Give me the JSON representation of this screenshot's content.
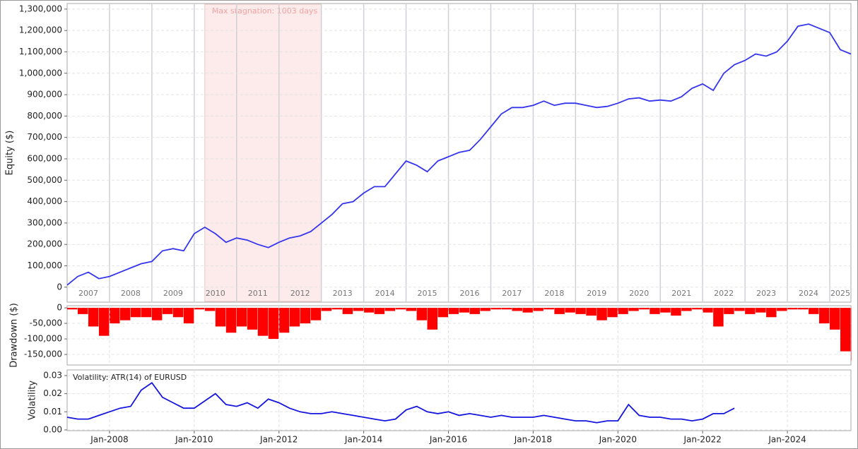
{
  "chart_data": [
    {
      "type": "line",
      "y_label": "Equity ($)",
      "color": "#3535ee",
      "grid": true,
      "x": [
        "2007-01",
        "2007-04",
        "2007-07",
        "2007-10",
        "2008-01",
        "2008-04",
        "2008-07",
        "2008-10",
        "2009-01",
        "2009-04",
        "2009-07",
        "2009-10",
        "2010-01",
        "2010-04",
        "2010-07",
        "2010-10",
        "2011-01",
        "2011-04",
        "2011-07",
        "2011-10",
        "2012-01",
        "2012-04",
        "2012-07",
        "2012-10",
        "2013-01",
        "2013-04",
        "2013-07",
        "2013-10",
        "2014-01",
        "2014-04",
        "2014-07",
        "2014-10",
        "2015-01",
        "2015-04",
        "2015-07",
        "2015-10",
        "2016-01",
        "2016-04",
        "2016-07",
        "2016-10",
        "2017-01",
        "2017-04",
        "2017-07",
        "2017-10",
        "2018-01",
        "2018-04",
        "2018-07",
        "2018-10",
        "2019-01",
        "2019-04",
        "2019-07",
        "2019-10",
        "2020-01",
        "2020-04",
        "2020-07",
        "2020-10",
        "2021-01",
        "2021-04",
        "2021-07",
        "2021-10",
        "2022-01",
        "2022-04",
        "2022-07",
        "2022-10",
        "2023-01",
        "2023-04",
        "2023-07",
        "2023-10",
        "2024-01",
        "2024-04",
        "2024-07",
        "2024-10",
        "2025-01",
        "2025-04",
        "2025-07"
      ],
      "values": [
        10000,
        50000,
        70000,
        40000,
        50000,
        70000,
        90000,
        110000,
        120000,
        170000,
        180000,
        170000,
        250000,
        280000,
        250000,
        210000,
        230000,
        220000,
        200000,
        185000,
        210000,
        230000,
        240000,
        260000,
        300000,
        340000,
        390000,
        400000,
        440000,
        470000,
        470000,
        530000,
        590000,
        570000,
        540000,
        590000,
        610000,
        630000,
        640000,
        690000,
        750000,
        810000,
        840000,
        840000,
        850000,
        870000,
        850000,
        860000,
        860000,
        850000,
        840000,
        845000,
        860000,
        880000,
        885000,
        870000,
        875000,
        870000,
        890000,
        930000,
        950000,
        920000,
        1000000,
        1040000,
        1060000,
        1090000,
        1080000,
        1100000,
        1150000,
        1220000,
        1230000,
        1210000,
        1190000,
        1110000,
        1090000
      ],
      "xlim": [
        "2007-01",
        "2025-07"
      ],
      "ylim": [
        -70000,
        1326000
      ],
      "yticks": [
        0,
        {
          "value": 100000,
          "label": "100,000"
        },
        {
          "value": 200000,
          "label": "200,000"
        },
        {
          "value": 300000,
          "label": "300,000"
        },
        {
          "value": 400000,
          "label": "400,000"
        },
        {
          "value": 500000,
          "label": "500,000"
        },
        {
          "value": 600000,
          "label": "600,000"
        },
        {
          "value": 700000,
          "label": "700,000"
        },
        {
          "value": 800000,
          "label": "800,000"
        },
        {
          "value": 900000,
          "label": "900,000"
        },
        {
          "value": 1000000,
          "label": "1,000,000"
        },
        {
          "value": 1100000,
          "label": "1,100,000"
        },
        {
          "value": 1200000,
          "label": "1,200,000"
        },
        {
          "value": 1300000,
          "label": "1,300,000"
        }
      ],
      "year_labels": [
        2007,
        2008,
        2009,
        2010,
        2011,
        2012,
        2013,
        2014,
        2015,
        2016,
        2017,
        2018,
        2019,
        2020,
        2021,
        2022,
        2023,
        2024,
        2025
      ],
      "stagnation": {
        "start": "2010-04",
        "end": "2013-01",
        "label": "Max stagnation: 1003 days"
      }
    },
    {
      "type": "bar",
      "y_label": "Drawdown ($)",
      "color": "#ff0000",
      "grid": true,
      "x": [
        "2007-01",
        "2007-04",
        "2007-07",
        "2007-10",
        "2008-01",
        "2008-04",
        "2008-07",
        "2008-10",
        "2009-01",
        "2009-04",
        "2009-07",
        "2009-10",
        "2010-01",
        "2010-04",
        "2010-07",
        "2010-10",
        "2011-01",
        "2011-04",
        "2011-07",
        "2011-10",
        "2012-01",
        "2012-04",
        "2012-07",
        "2012-10",
        "2013-01",
        "2013-04",
        "2013-07",
        "2013-10",
        "2014-01",
        "2014-04",
        "2014-07",
        "2014-10",
        "2015-01",
        "2015-04",
        "2015-07",
        "2015-10",
        "2016-01",
        "2016-04",
        "2016-07",
        "2016-10",
        "2017-01",
        "2017-04",
        "2017-07",
        "2017-10",
        "2018-01",
        "2018-04",
        "2018-07",
        "2018-10",
        "2019-01",
        "2019-04",
        "2019-07",
        "2019-10",
        "2020-01",
        "2020-04",
        "2020-07",
        "2020-10",
        "2021-01",
        "2021-04",
        "2021-07",
        "2021-10",
        "2022-01",
        "2022-04",
        "2022-07",
        "2022-10",
        "2023-01",
        "2023-04",
        "2023-07",
        "2023-10",
        "2024-01",
        "2024-04",
        "2024-07",
        "2024-10",
        "2025-01",
        "2025-04",
        "2025-07"
      ],
      "values": [
        -5000,
        -20000,
        -60000,
        -90000,
        -50000,
        -40000,
        -30000,
        -30000,
        -40000,
        -20000,
        -30000,
        -50000,
        -5000,
        -10000,
        -60000,
        -80000,
        -60000,
        -70000,
        -90000,
        -100000,
        -80000,
        -60000,
        -50000,
        -40000,
        -10000,
        -5000,
        -20000,
        -10000,
        -15000,
        -20000,
        -10000,
        -5000,
        -10000,
        -40000,
        -70000,
        -30000,
        -20000,
        -15000,
        -20000,
        -10000,
        -5000,
        -5000,
        -10000,
        -15000,
        -10000,
        -5000,
        -20000,
        -15000,
        -20000,
        -25000,
        -40000,
        -30000,
        -20000,
        -10000,
        -5000,
        -20000,
        -15000,
        -25000,
        -10000,
        -5000,
        -15000,
        -60000,
        -20000,
        -10000,
        -20000,
        -15000,
        -30000,
        -10000,
        -5000,
        -5000,
        -20000,
        -50000,
        -70000,
        -140000,
        -170000
      ],
      "xlim": [
        "2007-01",
        "2025-07"
      ],
      "ylim": [
        -184000,
        7000
      ],
      "yticks": [
        0,
        {
          "value": -50000,
          "label": "-50,000"
        },
        {
          "value": -100000,
          "label": "-100,000"
        },
        {
          "value": -150000,
          "label": "-150,000"
        }
      ]
    },
    {
      "type": "line",
      "y_label": "Volatility",
      "annotation": "Volatility: ATR(14) of EURUSD",
      "color": "#1515e0",
      "grid": true,
      "x": [
        "2007-01",
        "2007-04",
        "2007-07",
        "2007-10",
        "2008-01",
        "2008-04",
        "2008-07",
        "2008-10",
        "2009-01",
        "2009-04",
        "2009-07",
        "2009-10",
        "2010-01",
        "2010-04",
        "2010-07",
        "2010-10",
        "2011-01",
        "2011-04",
        "2011-07",
        "2011-10",
        "2012-01",
        "2012-04",
        "2012-07",
        "2012-10",
        "2013-01",
        "2013-04",
        "2013-07",
        "2013-10",
        "2014-01",
        "2014-04",
        "2014-07",
        "2014-10",
        "2015-01",
        "2015-04",
        "2015-07",
        "2015-10",
        "2016-01",
        "2016-04",
        "2016-07",
        "2016-10",
        "2017-01",
        "2017-04",
        "2017-07",
        "2017-10",
        "2018-01",
        "2018-04",
        "2018-07",
        "2018-10",
        "2019-01",
        "2019-04",
        "2019-07",
        "2019-10",
        "2020-01",
        "2020-04",
        "2020-07",
        "2020-10",
        "2021-01",
        "2021-04",
        "2021-07",
        "2021-10",
        "2022-01",
        "2022-04",
        "2022-07",
        "2022-10",
        "2023-01",
        "2023-04",
        "2023-07",
        "2023-10",
        "2024-01",
        "2024-04",
        "2024-07",
        "2024-10",
        "2025-01",
        "2025-04",
        "2025-07"
      ],
      "values": [
        0.007,
        0.006,
        0.006,
        0.008,
        0.01,
        0.012,
        0.013,
        0.022,
        0.026,
        0.018,
        0.015,
        0.012,
        0.012,
        0.016,
        0.02,
        0.014,
        0.013,
        0.015,
        0.012,
        0.017,
        0.015,
        0.012,
        0.01,
        0.009,
        0.009,
        0.01,
        0.009,
        0.008,
        0.007,
        0.006,
        0.005,
        0.006,
        0.011,
        0.013,
        0.01,
        0.009,
        0.01,
        0.008,
        0.009,
        0.008,
        0.007,
        0.008,
        0.007,
        0.007,
        0.007,
        0.008,
        0.007,
        0.006,
        0.005,
        0.005,
        0.004,
        0.005,
        0.005,
        0.014,
        0.008,
        0.007,
        0.007,
        0.006,
        0.006,
        0.005,
        0.006,
        0.009,
        0.009,
        0.012,
        null,
        null,
        null,
        null,
        null,
        null,
        null,
        null,
        null,
        null,
        null
      ],
      "xlim": [
        "2007-01",
        "2025-07"
      ],
      "ylim": [
        -0.0004,
        0.0331
      ],
      "yticks": [
        {
          "value": 0,
          "label": "0.00"
        },
        {
          "value": 0.01,
          "label": "0.01"
        },
        {
          "value": 0.02,
          "label": "0.02"
        },
        {
          "value": 0.03,
          "label": "0.03"
        }
      ],
      "xticks": [
        {
          "value": "2008-01",
          "label": "Jan-2008"
        },
        {
          "value": "2010-01",
          "label": "Jan-2010"
        },
        {
          "value": "2012-01",
          "label": "Jan-2012"
        },
        {
          "value": "2014-01",
          "label": "Jan-2014"
        },
        {
          "value": "2016-01",
          "label": "Jan-2016"
        },
        {
          "value": "2018-01",
          "label": "Jan-2018"
        },
        {
          "value": "2020-01",
          "label": "Jan-2020"
        },
        {
          "value": "2022-01",
          "label": "Jan-2022"
        },
        {
          "value": "2024-01",
          "label": "Jan-2024"
        }
      ]
    }
  ]
}
